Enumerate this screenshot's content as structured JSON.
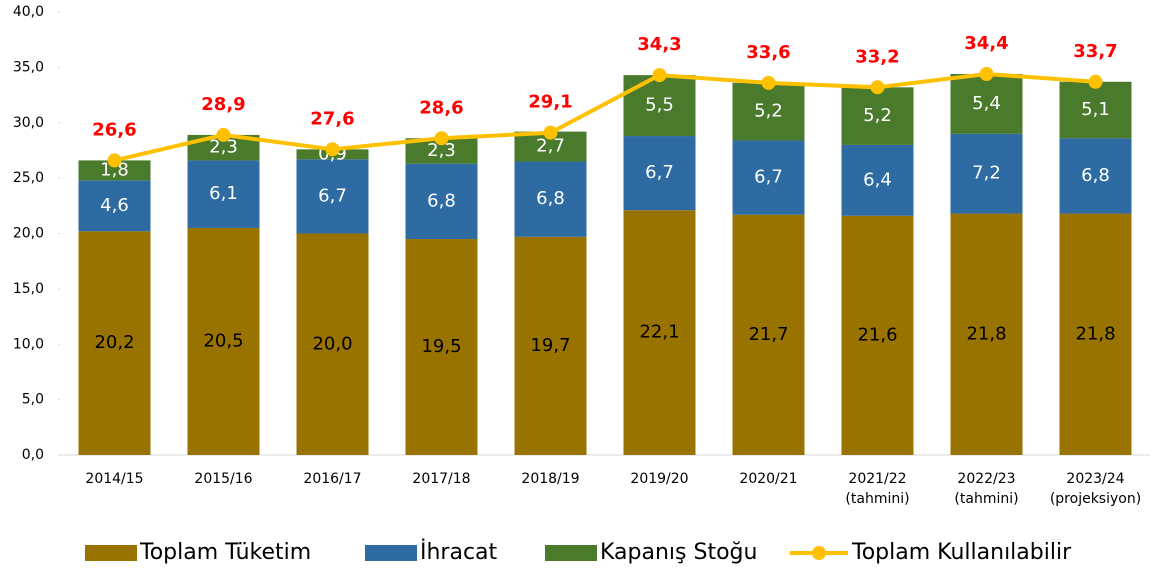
{
  "chart_data": {
    "type": "stacked-bar-line",
    "categories": [
      [
        "2014/15"
      ],
      [
        "2015/16"
      ],
      [
        "2016/17"
      ],
      [
        "2017/18"
      ],
      [
        "2018/19"
      ],
      [
        "2019/20"
      ],
      [
        "2020/21"
      ],
      [
        "2021/22",
        "(tahmini)"
      ],
      [
        "2022/23",
        "(tahmini)"
      ],
      [
        "2023/24",
        "(projeksiyon)"
      ]
    ],
    "series": [
      {
        "name": "Toplam Tüketim",
        "type": "bar",
        "color": "#997300",
        "label_color": "#000000",
        "values": [
          20.2,
          20.5,
          20.0,
          19.5,
          19.7,
          22.1,
          21.7,
          21.6,
          21.8,
          21.8
        ],
        "value_labels": [
          "20,2",
          "20,5",
          "20,0",
          "19,5",
          "19,7",
          "22,1",
          "21,7",
          "21,6",
          "21,8",
          "21,8"
        ]
      },
      {
        "name": "İhracat",
        "type": "bar",
        "color": "#2e6ba3",
        "label_color": "#ffffff",
        "values": [
          4.6,
          6.1,
          6.7,
          6.8,
          6.8,
          6.7,
          6.7,
          6.4,
          7.2,
          6.8
        ],
        "value_labels": [
          "4,6",
          "6,1",
          "6,7",
          "6,8",
          "6,8",
          "6,7",
          "6,7",
          "6,4",
          "7,2",
          "6,8"
        ]
      },
      {
        "name": "Kapanış Stoğu",
        "type": "bar",
        "color": "#4a7a2c",
        "label_color": "#ffffff",
        "values": [
          1.8,
          2.3,
          0.9,
          2.3,
          2.7,
          5.5,
          5.2,
          5.2,
          5.4,
          5.1
        ],
        "value_labels": [
          "1,8",
          "2,3",
          "0,9",
          "2,3",
          "2,7",
          "5,5",
          "5,2",
          "5,2",
          "5,4",
          "5,1"
        ]
      },
      {
        "name": "Toplam Kullanılabilir",
        "type": "line",
        "color": "#ffc000",
        "label_color": "#ff0000",
        "values": [
          26.6,
          28.9,
          27.6,
          28.6,
          29.1,
          34.3,
          33.6,
          33.2,
          34.4,
          33.7
        ],
        "value_labels": [
          "26,6",
          "28,9",
          "27,6",
          "28,6",
          "29,1",
          "34,3",
          "33,6",
          "33,2",
          "34,4",
          "33,7"
        ]
      }
    ],
    "ylim": [
      0,
      40
    ],
    "yticks": [
      {
        "value": 0,
        "label": "0,0"
      },
      {
        "value": 5,
        "label": "5,0"
      },
      {
        "value": 10,
        "label": "10,0"
      },
      {
        "value": 15,
        "label": "15,0"
      },
      {
        "value": 20,
        "label": "20,0"
      },
      {
        "value": 25,
        "label": "25,0"
      },
      {
        "value": 30,
        "label": "30,0"
      },
      {
        "value": 35,
        "label": "35,0"
      },
      {
        "value": 40,
        "label": "40,0"
      }
    ],
    "legend": "bottom"
  }
}
